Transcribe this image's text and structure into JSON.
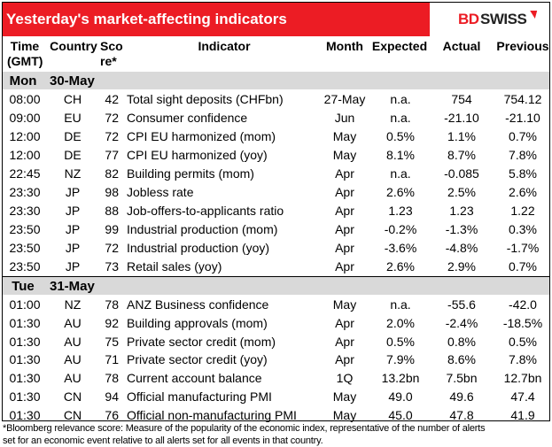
{
  "title": "Yesterday's market-affecting indicators",
  "logo": {
    "text_red": "BD",
    "text_dark": "SWISS"
  },
  "colors": {
    "brand_red": "#ec1c24",
    "day_row_bg": "#d9d9d9"
  },
  "headers": {
    "time": "Time",
    "time2": "(GMT)",
    "country": "Country",
    "score": "Sco",
    "score2": "re*",
    "indicator": "Indicator",
    "month": "Month",
    "expected": "Expected",
    "actual": "Actual",
    "previous": "Previous"
  },
  "days": [
    {
      "day": "Mon",
      "date": "30-May",
      "rows": [
        [
          "08:00",
          "CH",
          "42",
          "Total sight deposits (CHFbn)",
          "27-May",
          "n.a.",
          "754",
          "754.12"
        ],
        [
          "09:00",
          "EU",
          "72",
          "Consumer confidence",
          "Jun",
          "n.a.",
          "-21.10",
          "-21.10"
        ],
        [
          "12:00",
          "DE",
          "72",
          "CPI EU harmonized (mom)",
          "May",
          "0.5%",
          "1.1%",
          "0.7%"
        ],
        [
          "12:00",
          "DE",
          "77",
          "CPI EU harmonized (yoy)",
          "May",
          "8.1%",
          "8.7%",
          "7.8%"
        ],
        [
          "22:45",
          "NZ",
          "82",
          "Building permits (mom)",
          "Apr",
          "n.a.",
          "-0.085",
          "5.8%"
        ],
        [
          "23:30",
          "JP",
          "98",
          "Jobless rate",
          "Apr",
          "2.6%",
          "2.5%",
          "2.6%"
        ],
        [
          "23:30",
          "JP",
          "88",
          "Job-offers-to-applicants ratio",
          "Apr",
          "1.23",
          "1.23",
          "1.22"
        ],
        [
          "23:50",
          "JP",
          "99",
          "Industrial production (mom)",
          "Apr",
          "-0.2%",
          "-1.3%",
          "0.3%"
        ],
        [
          "23:50",
          "JP",
          "72",
          "Industrial production (yoy)",
          "Apr",
          "-3.6%",
          "-4.8%",
          "-1.7%"
        ],
        [
          "23:50",
          "JP",
          "73",
          "Retail sales (yoy)",
          "Apr",
          "2.6%",
          "2.9%",
          "0.7%"
        ]
      ]
    },
    {
      "day": "Tue",
      "date": "31-May",
      "rows": [
        [
          "01:00",
          "NZ",
          "78",
          "ANZ Business confidence",
          "May",
          "n.a.",
          "-55.6",
          "-42.0"
        ],
        [
          "01:30",
          "AU",
          "92",
          "Building approvals (mom)",
          "Apr",
          "2.0%",
          "-2.4%",
          "-18.5%"
        ],
        [
          "01:30",
          "AU",
          "75",
          "Private sector credit (mom)",
          "Apr",
          "0.5%",
          "0.8%",
          "0.5%"
        ],
        [
          "01:30",
          "AU",
          "71",
          "Private sector credit (yoy)",
          "Apr",
          "7.9%",
          "8.6%",
          "7.8%"
        ],
        [
          "01:30",
          "AU",
          "78",
          "Current account balance",
          "1Q",
          "13.2bn",
          "7.5bn",
          "12.7bn"
        ],
        [
          "01:30",
          "CN",
          "94",
          "Official manufacturing PMI",
          "May",
          "49.0",
          "49.6",
          "47.4"
        ],
        [
          "01:30",
          "CN",
          "76",
          "Official non-manufacturing PMI",
          "May",
          "45.0",
          "47.8",
          "41.9"
        ]
      ]
    }
  ],
  "footnote": "*Bloomberg relevance score:  Measure of the popularity of the economic index, representative of the number of alerts set for an economic event relative to all alerts set for all events in that country."
}
